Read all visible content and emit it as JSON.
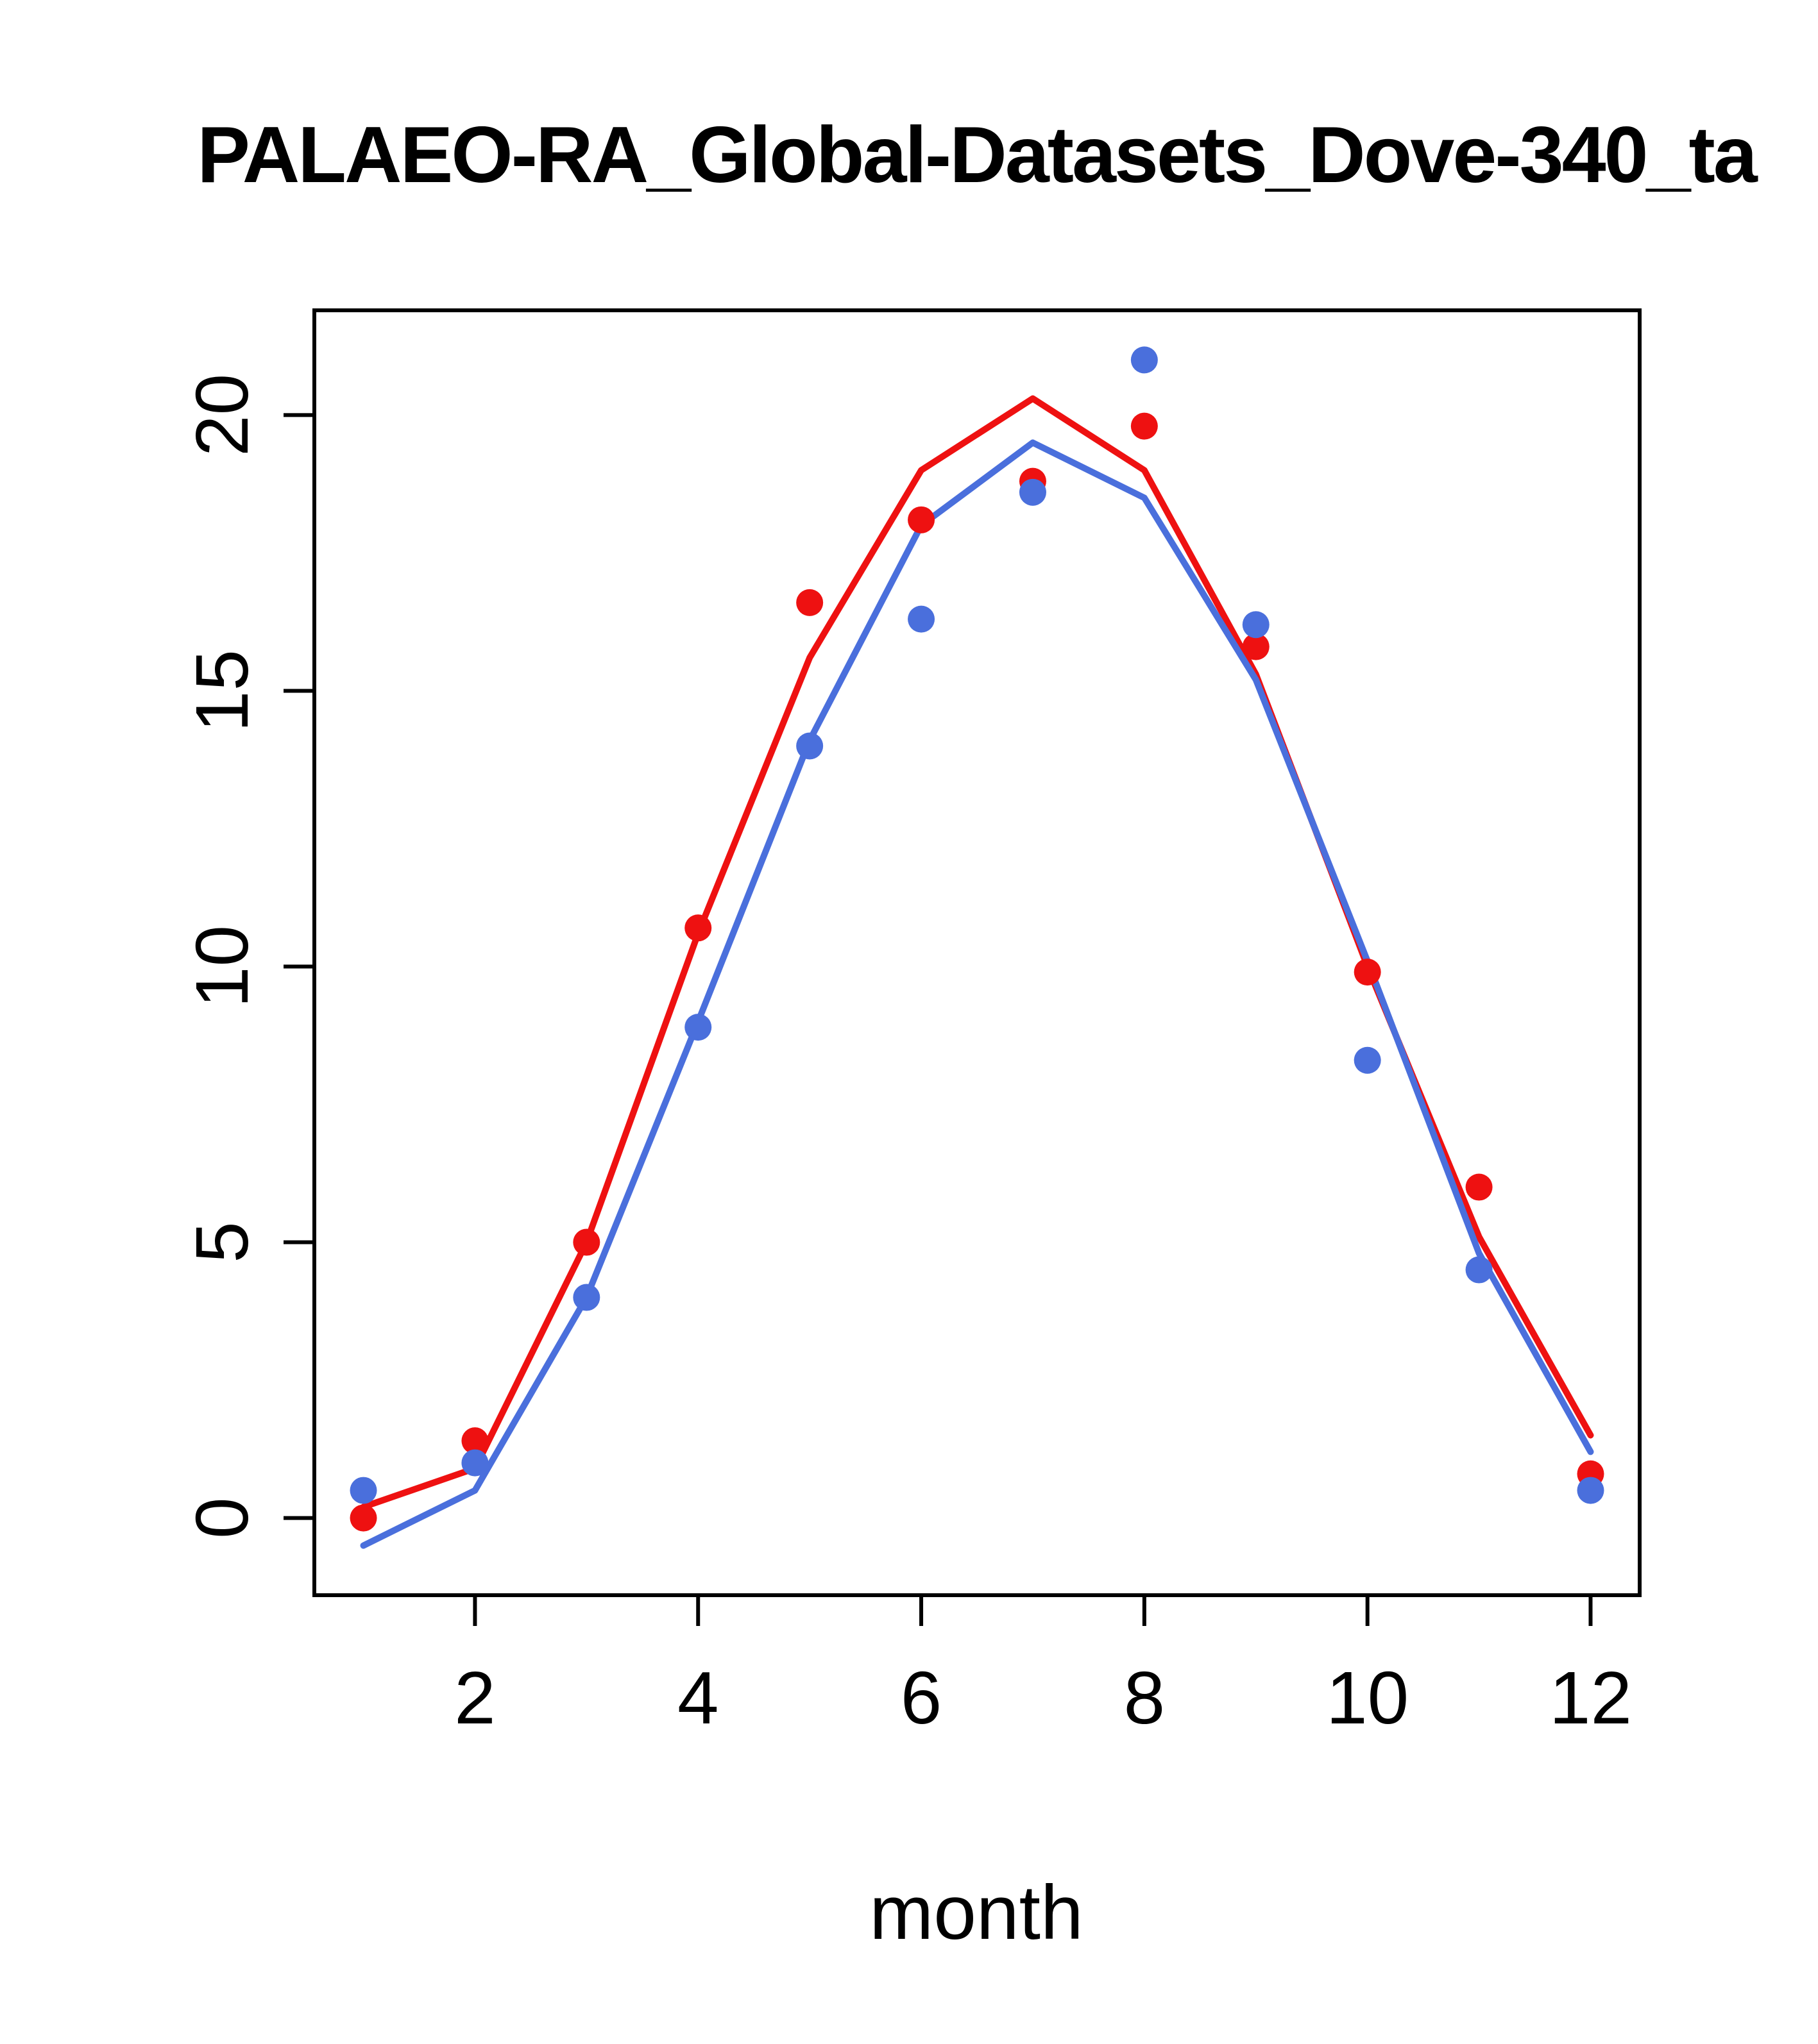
{
  "chart_data": {
    "type": "line",
    "title": "PALAEO-RA_Global-Datasets_Dove-340_ta",
    "xlabel": "month",
    "ylabel": "",
    "x": [
      1,
      2,
      3,
      4,
      5,
      6,
      7,
      8,
      9,
      10,
      11,
      12
    ],
    "xlim": [
      0.56,
      12.44
    ],
    "ylim": [
      -1.4,
      21.9
    ],
    "xticks": [
      2,
      4,
      6,
      8,
      10,
      12
    ],
    "yticks": [
      0,
      5,
      10,
      15,
      20
    ],
    "grid": false,
    "legend": "none",
    "colors": {
      "red": "#ee1111",
      "blue": "#4a6fdc",
      "axis": "#000000"
    },
    "series": [
      {
        "name": "red-line",
        "type": "line",
        "color": "#ee1111",
        "values": [
          0.2,
          0.9,
          5.0,
          10.6,
          15.6,
          19.0,
          20.3,
          19.0,
          15.3,
          10.0,
          5.1,
          1.5
        ]
      },
      {
        "name": "blue-line",
        "type": "line",
        "color": "#4a6fdc",
        "values": [
          -0.5,
          0.5,
          4.0,
          9.0,
          14.1,
          18.0,
          19.5,
          18.5,
          15.2,
          10.1,
          4.8,
          1.2
        ]
      },
      {
        "name": "red-points",
        "type": "scatter",
        "color": "#ee1111",
        "values": [
          0.0,
          1.4,
          5.0,
          10.7,
          16.6,
          18.1,
          18.8,
          19.8,
          15.8,
          9.9,
          6.0,
          0.8
        ]
      },
      {
        "name": "blue-points",
        "type": "scatter",
        "color": "#4a6fdc",
        "values": [
          0.5,
          1.0,
          4.0,
          8.9,
          14.0,
          16.3,
          18.6,
          21.0,
          16.2,
          8.3,
          4.5,
          0.5
        ]
      }
    ]
  }
}
